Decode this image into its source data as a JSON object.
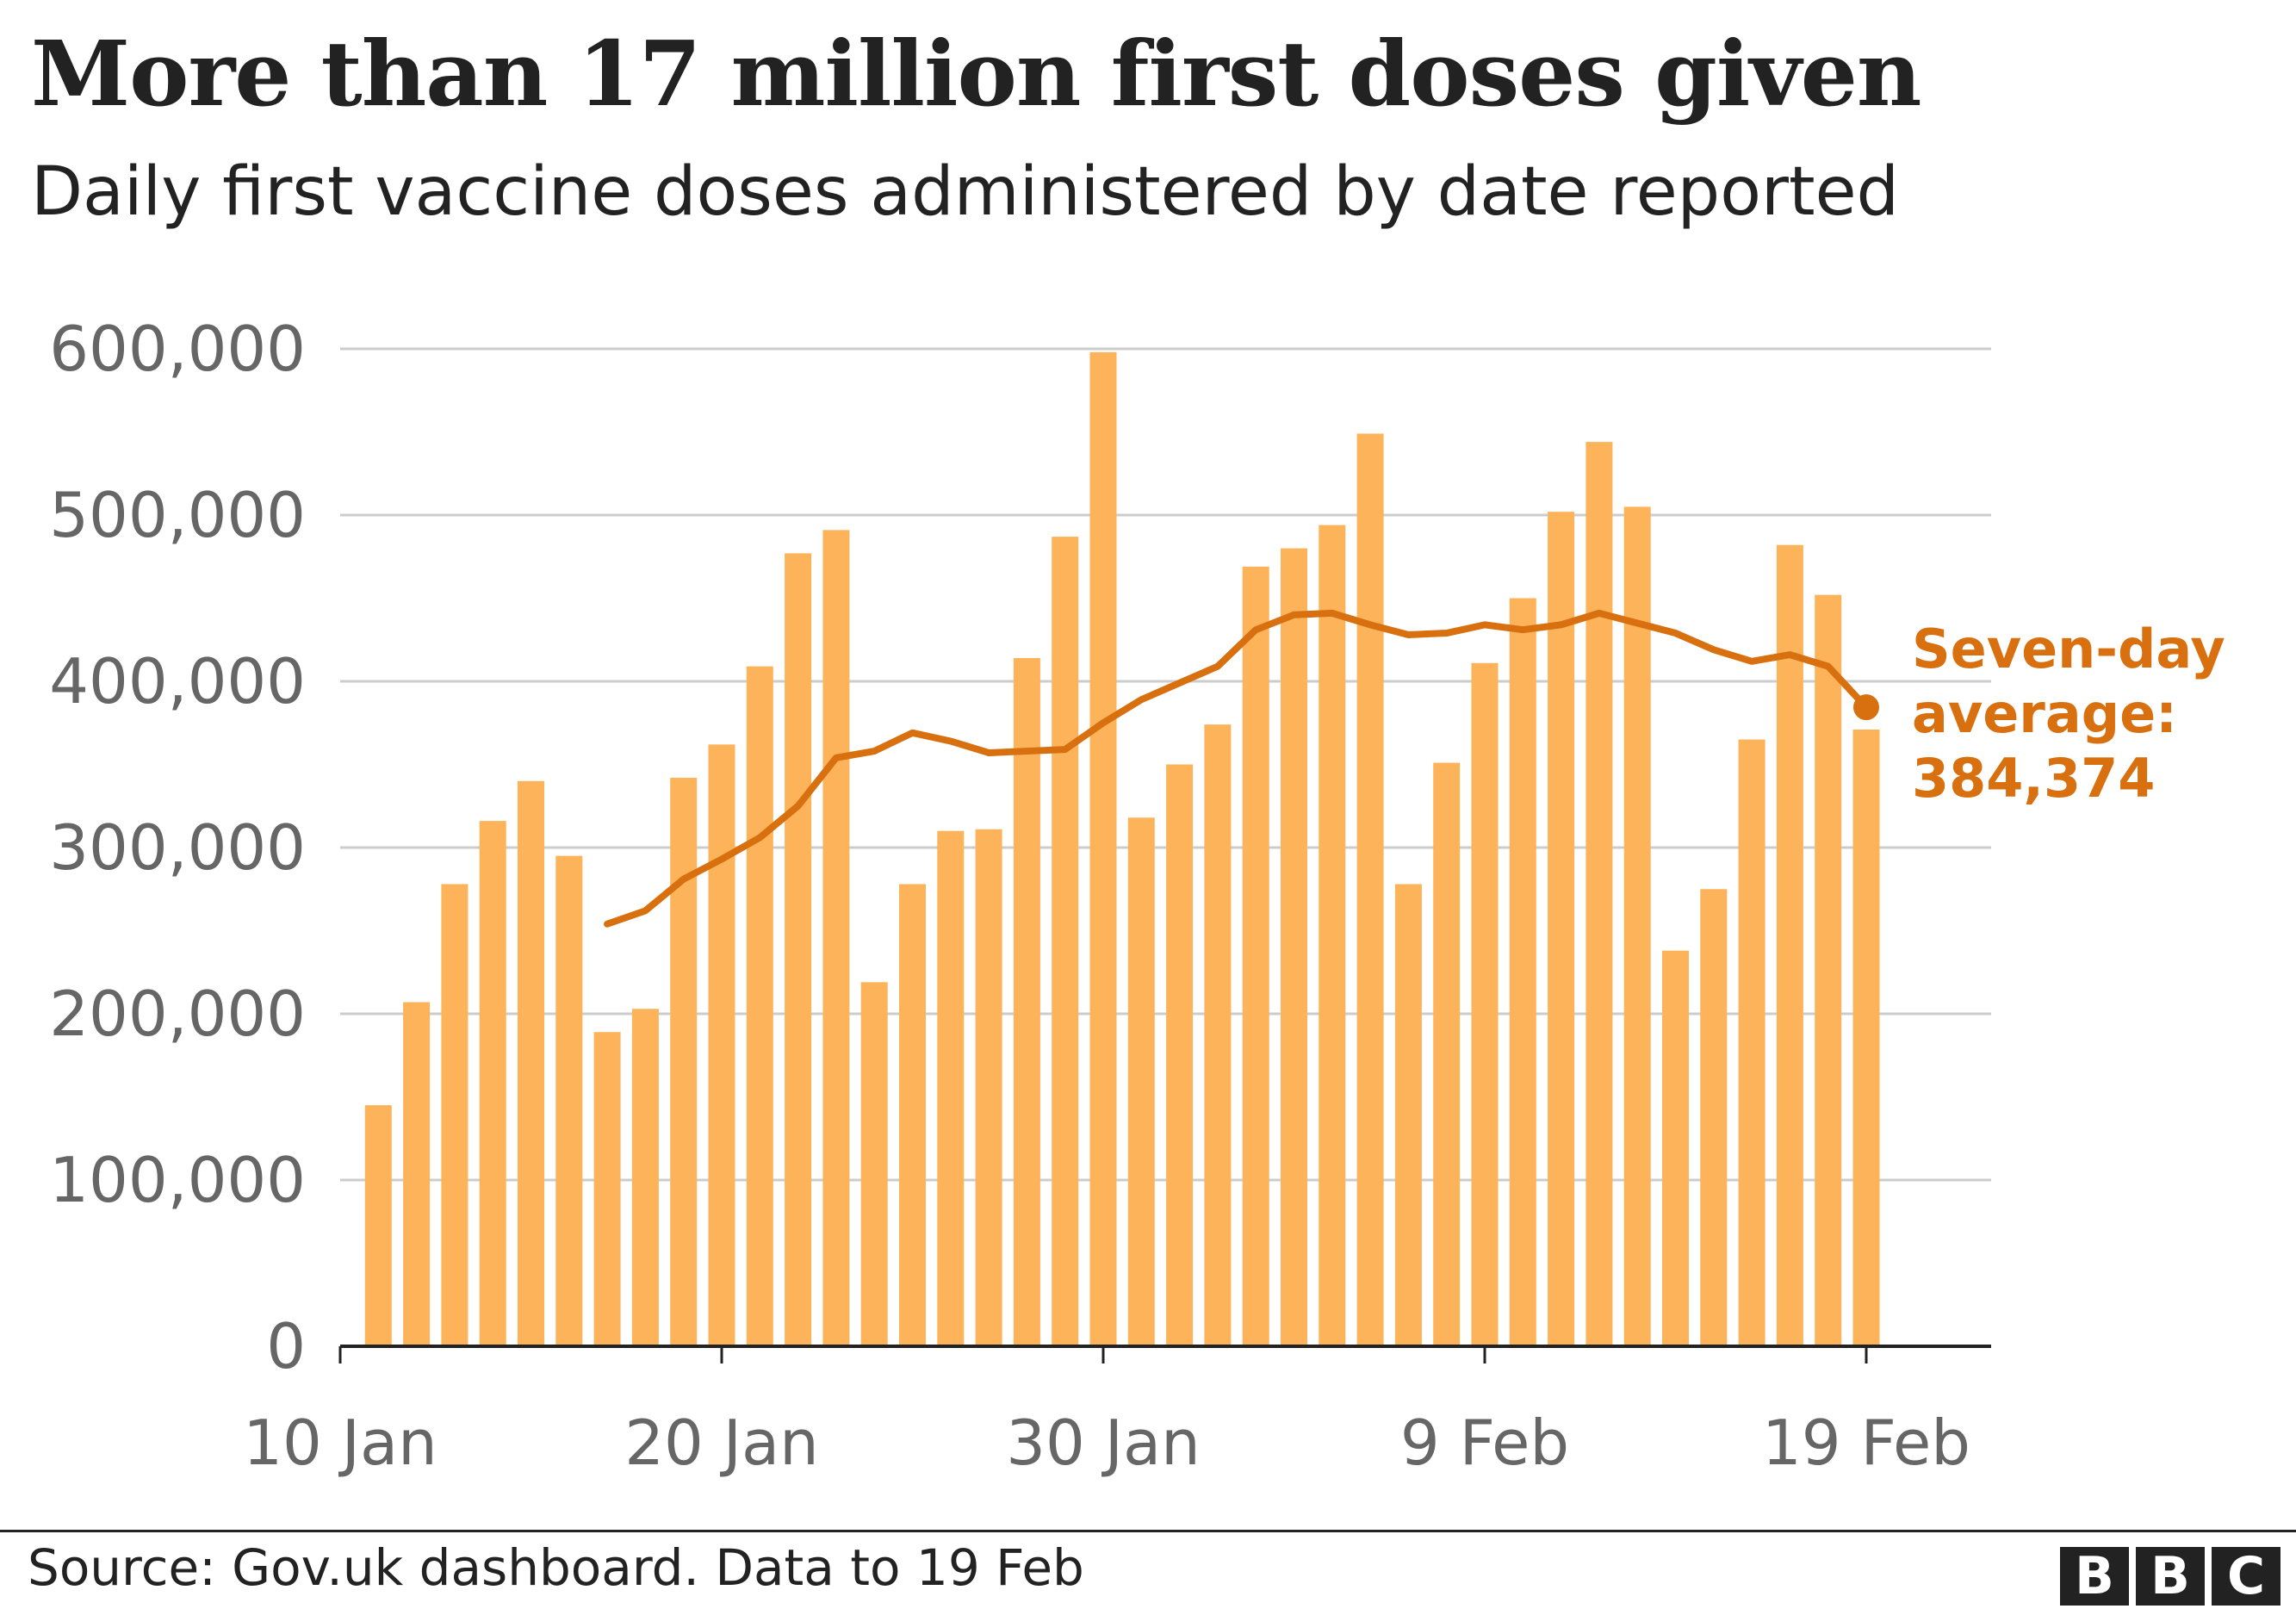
{
  "header": {
    "title": "More than 17 million first doses given",
    "subtitle": "Daily first vaccine doses administered by date reported"
  },
  "footer": {
    "source": "Source: Gov.uk dashboard. Data to 19 Feb",
    "logo_letters": [
      "B",
      "B",
      "C"
    ]
  },
  "colors": {
    "bar": "#fdb35a",
    "line": "#d9700f",
    "annotation": "#d9700f",
    "grid": "#cccccc",
    "axis": "#222222",
    "tick_text": "#666666"
  },
  "chart_data": {
    "type": "bar",
    "title": "More than 17 million first doses given",
    "subtitle": "Daily first vaccine doses administered by date reported",
    "xlabel": "",
    "ylabel": "",
    "ylim": [
      0,
      600000
    ],
    "yticks": [
      0,
      100000,
      200000,
      300000,
      400000,
      500000,
      600000
    ],
    "ytick_labels": [
      "0",
      "100,000",
      "200,000",
      "300,000",
      "400,000",
      "500,000",
      "600,000"
    ],
    "xtick_labels": [
      {
        "day_index": 0,
        "label": "10 Jan"
      },
      {
        "day_index": 10,
        "label": "20 Jan"
      },
      {
        "day_index": 20,
        "label": "30 Jan"
      },
      {
        "day_index": 30,
        "label": "9 Feb"
      },
      {
        "day_index": 40,
        "label": "19 Feb"
      }
    ],
    "grid": true,
    "dates": [
      "11 Jan",
      "12 Jan",
      "13 Jan",
      "14 Jan",
      "15 Jan",
      "16 Jan",
      "17 Jan",
      "18 Jan",
      "19 Jan",
      "20 Jan",
      "21 Jan",
      "22 Jan",
      "23 Jan",
      "24 Jan",
      "25 Jan",
      "26 Jan",
      "27 Jan",
      "28 Jan",
      "29 Jan",
      "30 Jan",
      "31 Jan",
      "1 Feb",
      "2 Feb",
      "3 Feb",
      "4 Feb",
      "5 Feb",
      "6 Feb",
      "7 Feb",
      "8 Feb",
      "9 Feb",
      "10 Feb",
      "11 Feb",
      "12 Feb",
      "13 Feb",
      "14 Feb",
      "15 Feb",
      "16 Feb",
      "17 Feb",
      "18 Feb",
      "19 Feb"
    ],
    "series": [
      {
        "type": "bar",
        "values": [
          145000,
          207000,
          278000,
          316000,
          340000,
          295000,
          189000,
          203000,
          342000,
          362000,
          409000,
          477000,
          491000,
          219000,
          278000,
          310000,
          311000,
          414000,
          487000,
          598000,
          318000,
          350000,
          374000,
          469000,
          480000,
          494000,
          549000,
          278000,
          351000,
          411000,
          450000,
          502000,
          544000,
          505000,
          238000,
          275000,
          365000,
          482000,
          452000,
          371000
        ]
      },
      {
        "type": "line",
        "values": [
          null,
          null,
          null,
          null,
          null,
          null,
          254000,
          262000,
          281000,
          293000,
          306000,
          325000,
          354000,
          358000,
          369000,
          364000,
          357000,
          358000,
          359000,
          375000,
          389000,
          399000,
          409000,
          431000,
          440000,
          441000,
          434000,
          428000,
          429000,
          434000,
          431000,
          434000,
          441000,
          435000,
          429000,
          419000,
          412000,
          416000,
          409000,
          384374
        ]
      }
    ],
    "annotation": {
      "lines": [
        "Seven-day",
        "average:",
        "384,374"
      ],
      "value": 384374
    }
  }
}
